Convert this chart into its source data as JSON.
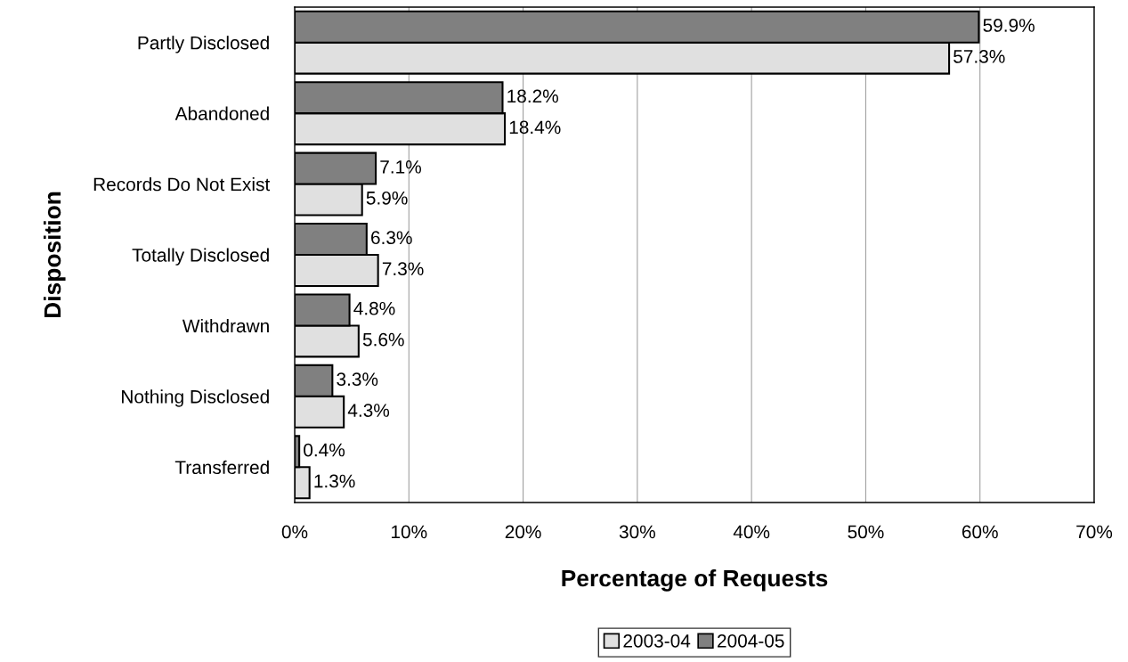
{
  "chart_data": {
    "type": "bar",
    "orientation": "horizontal",
    "xlabel": "Percentage of Requests",
    "ylabel": "Disposition",
    "categories": [
      "Partly Disclosed",
      "Abandoned",
      "Records Do Not Exist",
      "Totally Disclosed",
      "Withdrawn",
      "Nothing Disclosed",
      "Transferred"
    ],
    "series": [
      {
        "name": "2003-04",
        "color": "#e0e0e0",
        "values": [
          57.3,
          18.4,
          5.9,
          7.3,
          5.6,
          4.3,
          1.3
        ],
        "value_labels": [
          "57.3%",
          "18.4%",
          "5.9%",
          "7.3%",
          "5.6%",
          "4.3%",
          "1.3%"
        ]
      },
      {
        "name": "2004-05",
        "color": "#808080",
        "values": [
          59.9,
          18.2,
          7.1,
          6.3,
          4.8,
          3.3,
          0.4
        ],
        "value_labels": [
          "59.9%",
          "18.2%",
          "7.1%",
          "6.3%",
          "4.8%",
          "3.3%",
          "0.4%"
        ]
      }
    ],
    "xlim": [
      0,
      70
    ],
    "xticks": [
      {
        "value": 0,
        "label": "0%"
      },
      {
        "value": 10,
        "label": "10%"
      },
      {
        "value": 20,
        "label": "20%"
      },
      {
        "value": 30,
        "label": "30%"
      },
      {
        "value": 40,
        "label": "40%"
      },
      {
        "value": 50,
        "label": "50%"
      },
      {
        "value": 60,
        "label": "60%"
      },
      {
        "value": 70,
        "label": "70%"
      }
    ],
    "grid": "x",
    "legend": "bottom"
  }
}
